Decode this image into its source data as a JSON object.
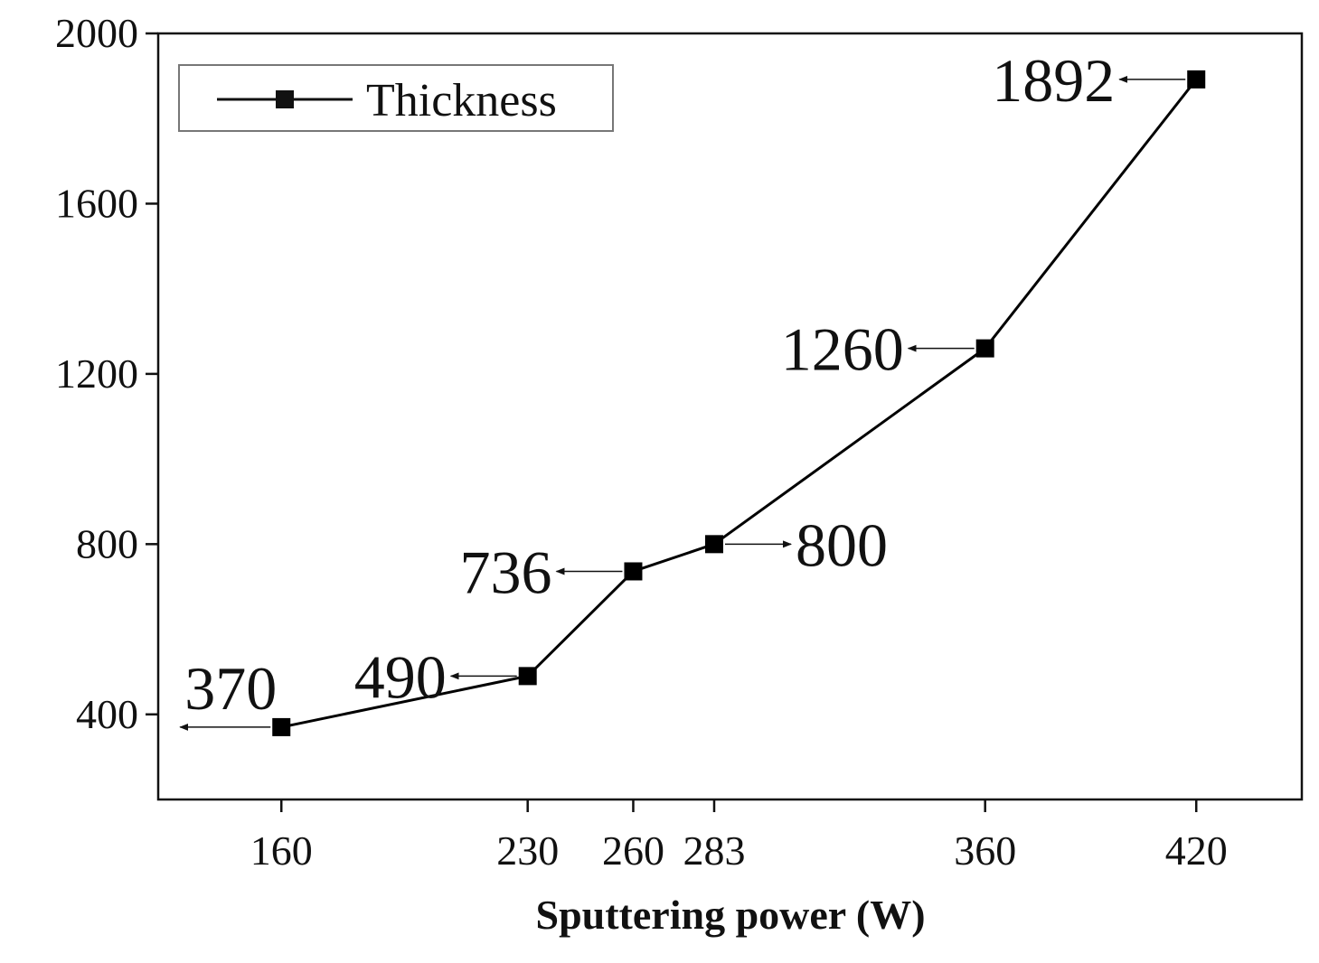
{
  "chart_data": {
    "type": "line",
    "title": "",
    "xlabel": "Sputtering power (W)",
    "ylabel": "",
    "x": [
      160,
      230,
      260,
      283,
      360,
      420
    ],
    "x_tick_labels": [
      "160",
      "230",
      "260",
      "283",
      "360",
      "420"
    ],
    "xlim": [
      125,
      450
    ],
    "ylim": [
      200,
      2000
    ],
    "y_ticks": [
      400,
      800,
      1200,
      1600,
      2000
    ],
    "y_tick_labels": [
      "400",
      "800",
      "1200",
      "1600",
      "2000"
    ],
    "series": [
      {
        "name": "Thickness",
        "values": [
          370,
          490,
          736,
          800,
          1260,
          1892
        ],
        "marker": "square",
        "color": "#000000"
      }
    ],
    "annotations": [
      {
        "text": "370",
        "x": 160,
        "y": 370,
        "direction": "left"
      },
      {
        "text": "490",
        "x": 230,
        "y": 490,
        "direction": "left"
      },
      {
        "text": "736",
        "x": 260,
        "y": 736,
        "direction": "left"
      },
      {
        "text": "800",
        "x": 283,
        "y": 800,
        "direction": "right"
      },
      {
        "text": "1260",
        "x": 360,
        "y": 1260,
        "direction": "left"
      },
      {
        "text": "1892",
        "x": 420,
        "y": 1892,
        "direction": "left"
      }
    ],
    "legend": {
      "label": "Thickness",
      "position": "top-left"
    },
    "grid": false
  }
}
